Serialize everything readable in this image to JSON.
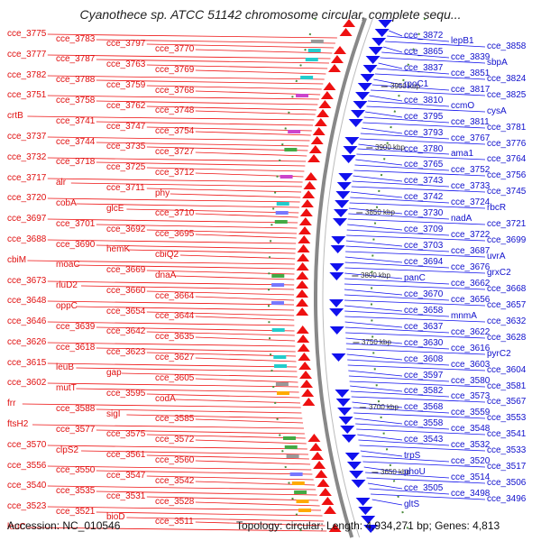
{
  "title": "Cyanothece sp. ATCC 51142 chromosome circular, complete sequ...",
  "footer": {
    "accession": "Accession: NC_010546",
    "topology": "Topology: circular; Length: 4,934,271 bp; Genes: 4,813"
  },
  "colors": {
    "forward": "#ee1111",
    "reverse": "#1111ee",
    "backbone": "#888888"
  },
  "kbp_labels": [
    "3950 kbp",
    "3900 kbp",
    "3850 kbp",
    "3800 kbp",
    "3750 kbp",
    "3700 kbp",
    "3650 kbp"
  ],
  "left_labels": [
    "cce_3775",
    "cce_3783",
    "cce_3797",
    "cce_3770",
    "cce_3777",
    "cce_3787",
    "cce_3763",
    "cce_3769",
    "cce_3782",
    "cce_3788",
    "cce_3759",
    "cce_3768",
    "cce_3751",
    "cce_3758",
    "cce_3762",
    "cce_3748",
    "crtB",
    "cce_3741",
    "cce_3747",
    "cce_3754",
    "cce_3737",
    "cce_3744",
    "cce_3735",
    "cce_3727",
    "cce_3732",
    "cce_3718",
    "cce_3725",
    "cce_3712",
    "cce_3717",
    "alr",
    "cce_3711",
    "phy",
    "cce_3720",
    "cobA",
    "glcE",
    "cce_3710",
    "cce_3697",
    "cce_3701",
    "cce_3692",
    "cce_3695",
    "cce_3688",
    "cce_3690",
    "hemK",
    "cbiQ2",
    "cbiM",
    "moaC",
    "cce_3669",
    "dnaA",
    "cce_3673",
    "rluD2",
    "cce_3660",
    "cce_3664",
    "cce_3648",
    "oppC",
    "cce_3654",
    "cce_3644",
    "cce_3646",
    "cce_3639",
    "cce_3642",
    "cce_3635",
    "cce_3626",
    "cce_3618",
    "cce_3623",
    "cce_3627",
    "cce_3615",
    "leuB",
    "gap",
    "cce_3605",
    "cce_3602",
    "mutT",
    "cce_3595",
    "codA",
    "frr",
    "cce_3588",
    "sigI",
    "cce_3585",
    "ftsH2",
    "cce_3577",
    "cce_3575",
    "cce_3572",
    "cce_3570",
    "clpS2",
    "cce_3561",
    "cce_3560",
    "cce_3556",
    "cce_3550",
    "cce_3547",
    "cce_3542",
    "cce_3540",
    "cce_3535",
    "cce_3531",
    "cce_3528",
    "cce_3523",
    "cce_3521",
    "bioD",
    "cce_3511",
    "leuC"
  ],
  "right_labels": [
    "cce_3872",
    "lepB1",
    "cce_3858",
    "cce_3865",
    "cce_3839",
    "sbpA",
    "cce_3837",
    "cce_3851",
    "cce_3824",
    "rpoC1",
    "cce_3817",
    "cce_3825",
    "cce_3810",
    "ccmO",
    "cysA",
    "cce_3795",
    "cce_3811",
    "cce_3781",
    "cce_3793",
    "cce_3767",
    "cce_3776",
    "cce_3780",
    "ama1",
    "cce_3764",
    "cce_3765",
    "cce_3752",
    "cce_3756",
    "cce_3743",
    "cce_3733",
    "cce_3745",
    "cce_3742",
    "cce_3724",
    "rbcR",
    "cce_3730",
    "nadA",
    "cce_3721",
    "cce_3709",
    "cce_3722",
    "cce_3699",
    "cce_3703",
    "cce_3687",
    "uvrA",
    "cce_3694",
    "cce_3676",
    "grxC2",
    "panC",
    "cce_3662",
    "cce_3668",
    "cce_3670",
    "cce_3656",
    "cce_3657",
    "cce_3658",
    "mnmA",
    "cce_3632",
    "cce_3637",
    "cce_3622",
    "cce_3628",
    "cce_3630",
    "cce_3616",
    "pyrC2",
    "cce_3608",
    "cce_3603",
    "cce_3604",
    "cce_3597",
    "cce_3580",
    "cce_3581",
    "cce_3582",
    "cce_3573",
    "cce_3567",
    "cce_3568",
    "cce_3559",
    "cce_3553",
    "cce_3558",
    "cce_3548",
    "cce_3541",
    "cce_3543",
    "cce_3532",
    "cce_3533",
    "trpS",
    "cce_3520",
    "cce_3517",
    "phoU",
    "cce_3514",
    "cce_3506",
    "cce_3505",
    "cce_3498",
    "cce_3496",
    "gltS"
  ]
}
